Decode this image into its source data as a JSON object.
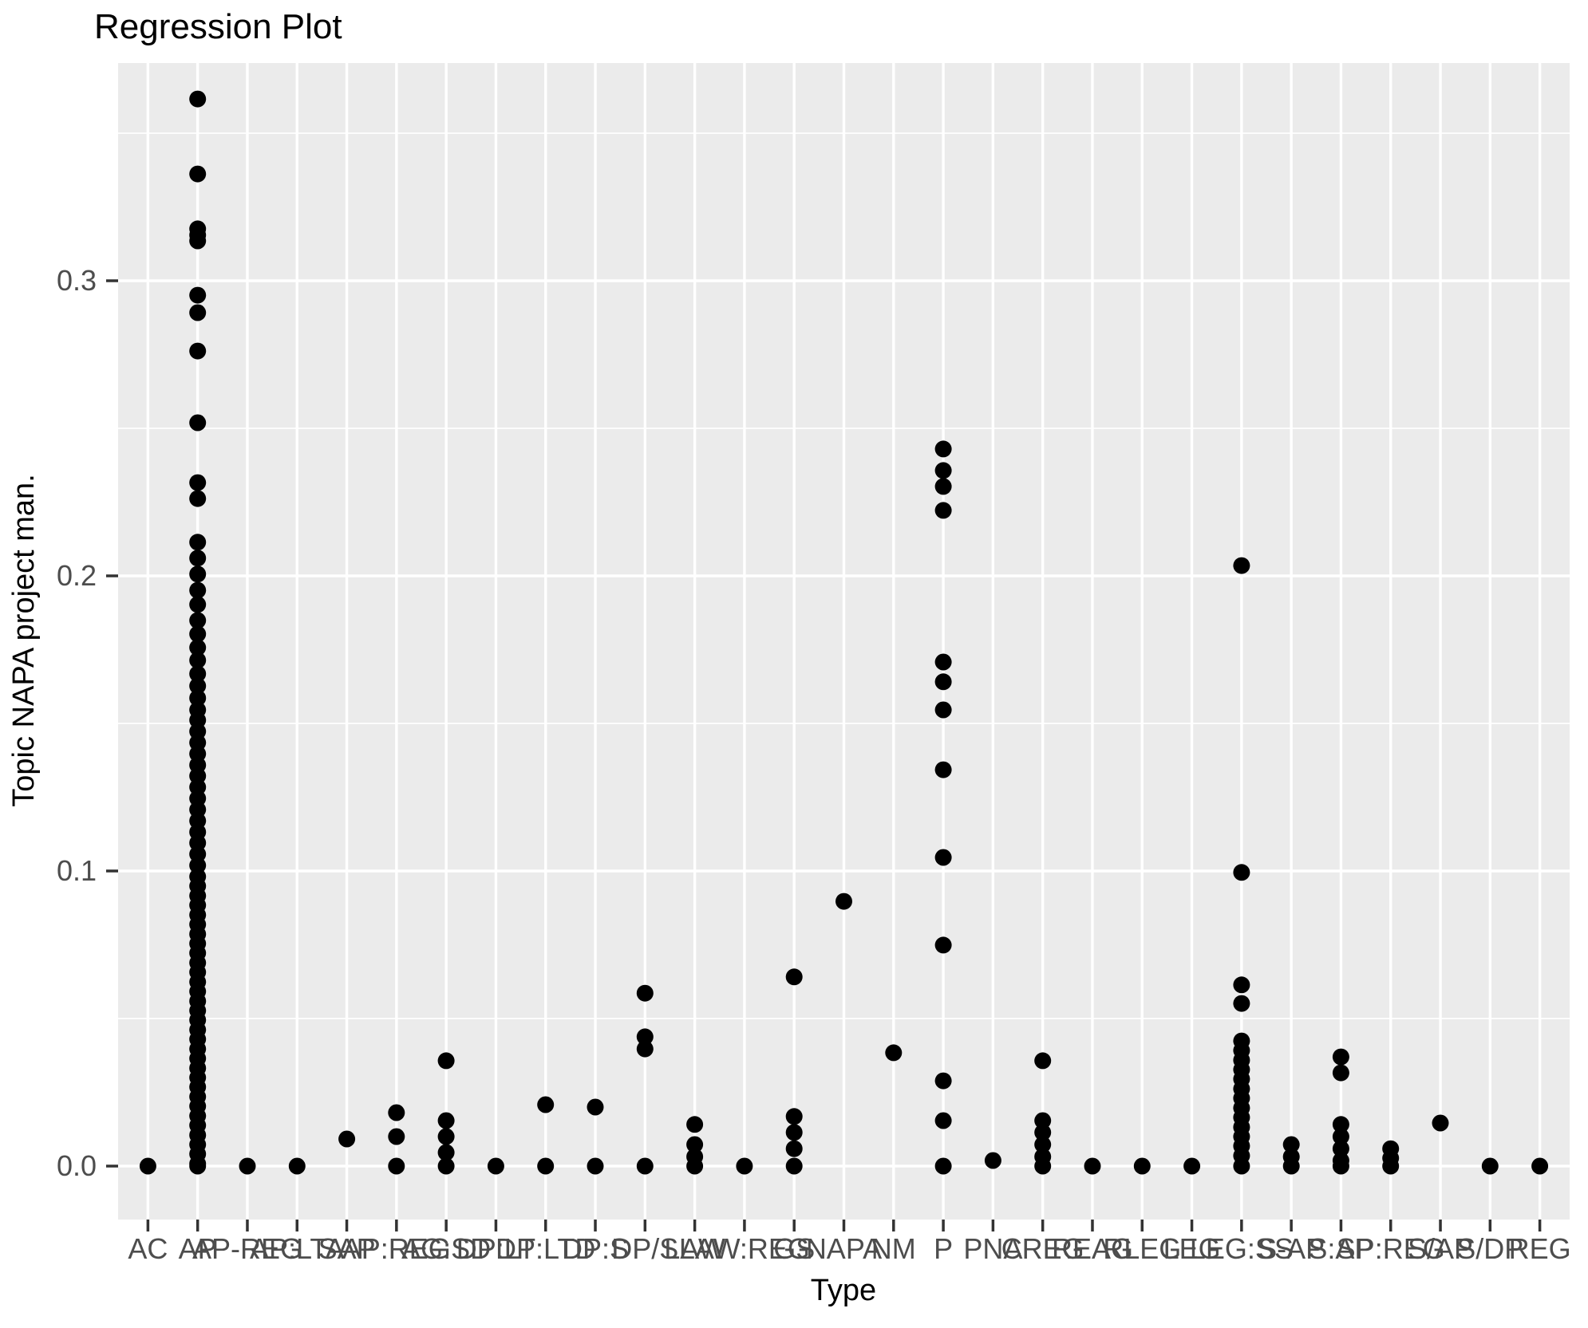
{
  "title": "Regression Plot",
  "colors": {
    "panel_background": "#EBEBEB",
    "gridline": "#FFFFFF",
    "point": "#000000",
    "axis_text": "#4D4D4D",
    "tick_mark": "#333333",
    "title_text": "#000000"
  },
  "y_axis": {
    "label": "Topic NAPA project man.",
    "tick_labels": [
      "0.0",
      "0.1",
      "0.2",
      "0.3"
    ]
  },
  "x_axis": {
    "label": "Type"
  },
  "chart_data": {
    "type": "scatter",
    "title": "Regression Plot",
    "xlabel": "Type",
    "ylabel": "Topic NAPA project man.",
    "ylim": [
      -0.018,
      0.374
    ],
    "yticks": [
      0.0,
      0.1,
      0.2,
      0.3
    ],
    "yticks_minor": [
      0.05,
      0.15,
      0.25,
      0.35
    ],
    "grid": "major-and-minor-white-on-gray",
    "legend": "none",
    "categories": [
      "AC",
      "AP",
      "AP-REG",
      "AP:LTA",
      "SAP",
      "AP:REG",
      "AG:SD",
      "DP:LT",
      "DP:LTD",
      "DP:S",
      "DP/S",
      "LAW",
      "LAW:REG",
      "GS",
      "NAPA",
      "NM",
      "P",
      "PNA",
      "CREG",
      "REAG",
      "RLEG",
      "LEG",
      "LEG:SS",
      "S-AP",
      "S:AP",
      "SP:REG",
      "S/AP",
      "S/DP",
      "REG"
    ],
    "series": [
      {
        "name": "Topic NAPA project man. by Type",
        "values_by_category": [
          [
            0.0
          ],
          [
            0.3616,
            0.3362,
            0.3176,
            0.3155,
            0.3135,
            0.2951,
            0.2892,
            0.2762,
            0.2519,
            0.2316,
            0.2262,
            0.2114,
            0.206,
            0.2006,
            0.1951,
            0.1903,
            0.1849,
            0.1803,
            0.1757,
            0.1714,
            0.1668,
            0.1627,
            0.1586,
            0.1546,
            0.1511,
            0.1473,
            0.1435,
            0.1397,
            0.1359,
            0.1322,
            0.1284,
            0.1246,
            0.1208,
            0.117,
            0.1132,
            0.1095,
            0.1057,
            0.1019,
            0.0981,
            0.0949,
            0.0916,
            0.0884,
            0.0851,
            0.0819,
            0.0786,
            0.0754,
            0.0722,
            0.0689,
            0.0657,
            0.0624,
            0.0592,
            0.0559,
            0.0527,
            0.0495,
            0.0462,
            0.043,
            0.0397,
            0.0365,
            0.0332,
            0.03,
            0.0268,
            0.0235,
            0.0203,
            0.017,
            0.0138,
            0.0105,
            0.0073,
            0.0041,
            0.0008,
            0.0
          ],
          [
            0.0
          ],
          [
            0.0
          ],
          [
            0.0092
          ],
          [
            0.0181,
            0.01,
            0.0
          ],
          [
            0.0357,
            0.0154,
            0.01,
            0.0046,
            0.0
          ],
          [
            0.0
          ],
          [
            0.0208,
            0.0
          ],
          [
            0.02,
            0.0
          ],
          [
            0.0586,
            0.0438,
            0.0397,
            0.0
          ],
          [
            0.0141,
            0.0073,
            0.0032,
            0.0
          ],
          [
            0.0
          ],
          [
            0.0641,
            0.0168,
            0.0114,
            0.0059,
            0.0
          ],
          [
            0.0897
          ],
          [
            0.0384
          ],
          [
            0.243,
            0.2357,
            0.2303,
            0.2222,
            0.1708,
            0.1641,
            0.1546,
            0.1343,
            0.1046,
            0.0749,
            0.0289,
            0.0154,
            0.0
          ],
          [
            0.0019
          ],
          [
            0.0357,
            0.0154,
            0.0114,
            0.0073,
            0.0032,
            0.0
          ],
          [
            0.0
          ],
          [
            0.0
          ],
          [
            0.0
          ],
          [
            0.2035,
            0.0995,
            0.0614,
            0.0551,
            0.0424,
            0.0392,
            0.0359,
            0.0327,
            0.0295,
            0.0262,
            0.023,
            0.0197,
            0.0165,
            0.0132,
            0.01,
            0.0068,
            0.0035,
            0.0
          ],
          [
            0.0073,
            0.0032,
            0.0
          ],
          [
            0.037,
            0.0316,
            0.0141,
            0.01,
            0.0059,
            0.0019,
            0.0
          ],
          [
            0.0059,
            0.0027,
            0.0
          ],
          [
            0.0146
          ],
          [
            0.0
          ],
          [
            0.0
          ]
        ]
      }
    ]
  }
}
